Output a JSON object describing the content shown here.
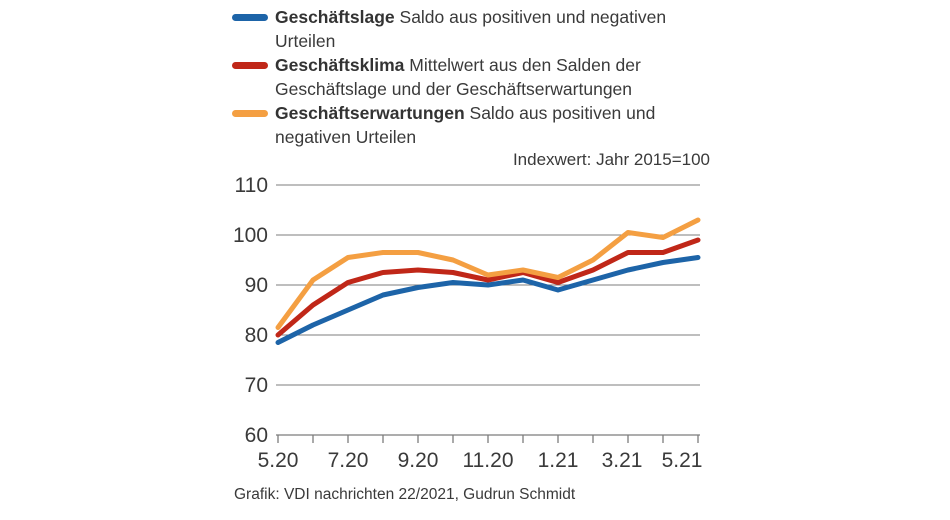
{
  "page": {
    "background": "#ffffff",
    "text_color": "#3a3a3a",
    "grid_color": "#7c7c7c"
  },
  "legend": {
    "items": [
      {
        "term": "Geschäftslage",
        "desc": "Saldo aus positiven und negativen Urteilen",
        "color": "#1d64a8"
      },
      {
        "term": "Geschäftsklima",
        "desc": "Mittelwert aus den Salden der Geschäftslage und der Geschäftserwartungen",
        "color": "#c02718"
      },
      {
        "term": "Geschäftserwartungen",
        "desc": "Saldo aus positiven und negativen Urteilen",
        "color": "#f49f42"
      }
    ]
  },
  "note": "Indexwert: Jahr 2015=100",
  "footer": "Grafik: VDI nachrichten 22/2021, Gudrun Schmidt",
  "chart_data": {
    "type": "line",
    "x": [
      "5.20",
      "6.20",
      "7.20",
      "8.20",
      "9.20",
      "10.20",
      "11.20",
      "12.20",
      "1.21",
      "2.21",
      "3.21",
      "4.21",
      "5.21"
    ],
    "xtick_labels": [
      "5.20",
      "7.20",
      "9.20",
      "11.20",
      "1.21",
      "3.21",
      "5.21"
    ],
    "ytick_labels": [
      "60",
      "70",
      "80",
      "90",
      "100",
      "110"
    ],
    "ylim": [
      60,
      110
    ],
    "grid": true,
    "legend_position": "top-left",
    "note": "Indexwert: Jahr 2015=100",
    "series": [
      {
        "name": "Geschäftslage",
        "color": "#1d64a8",
        "values": [
          78.5,
          82,
          85,
          88,
          89.5,
          90.5,
          90,
          91,
          89,
          91,
          93,
          94.5,
          95.5
        ]
      },
      {
        "name": "Geschäftsklima",
        "color": "#c02718",
        "values": [
          80,
          86,
          90.5,
          92.5,
          93,
          92.5,
          91,
          92.5,
          90.5,
          93,
          96.5,
          96.5,
          99
        ]
      },
      {
        "name": "Geschäftserwartungen",
        "color": "#f49f42",
        "values": [
          81.5,
          91,
          95.5,
          96.5,
          96.5,
          95,
          92,
          93,
          91.5,
          95,
          100.5,
          99.5,
          103
        ]
      }
    ]
  }
}
